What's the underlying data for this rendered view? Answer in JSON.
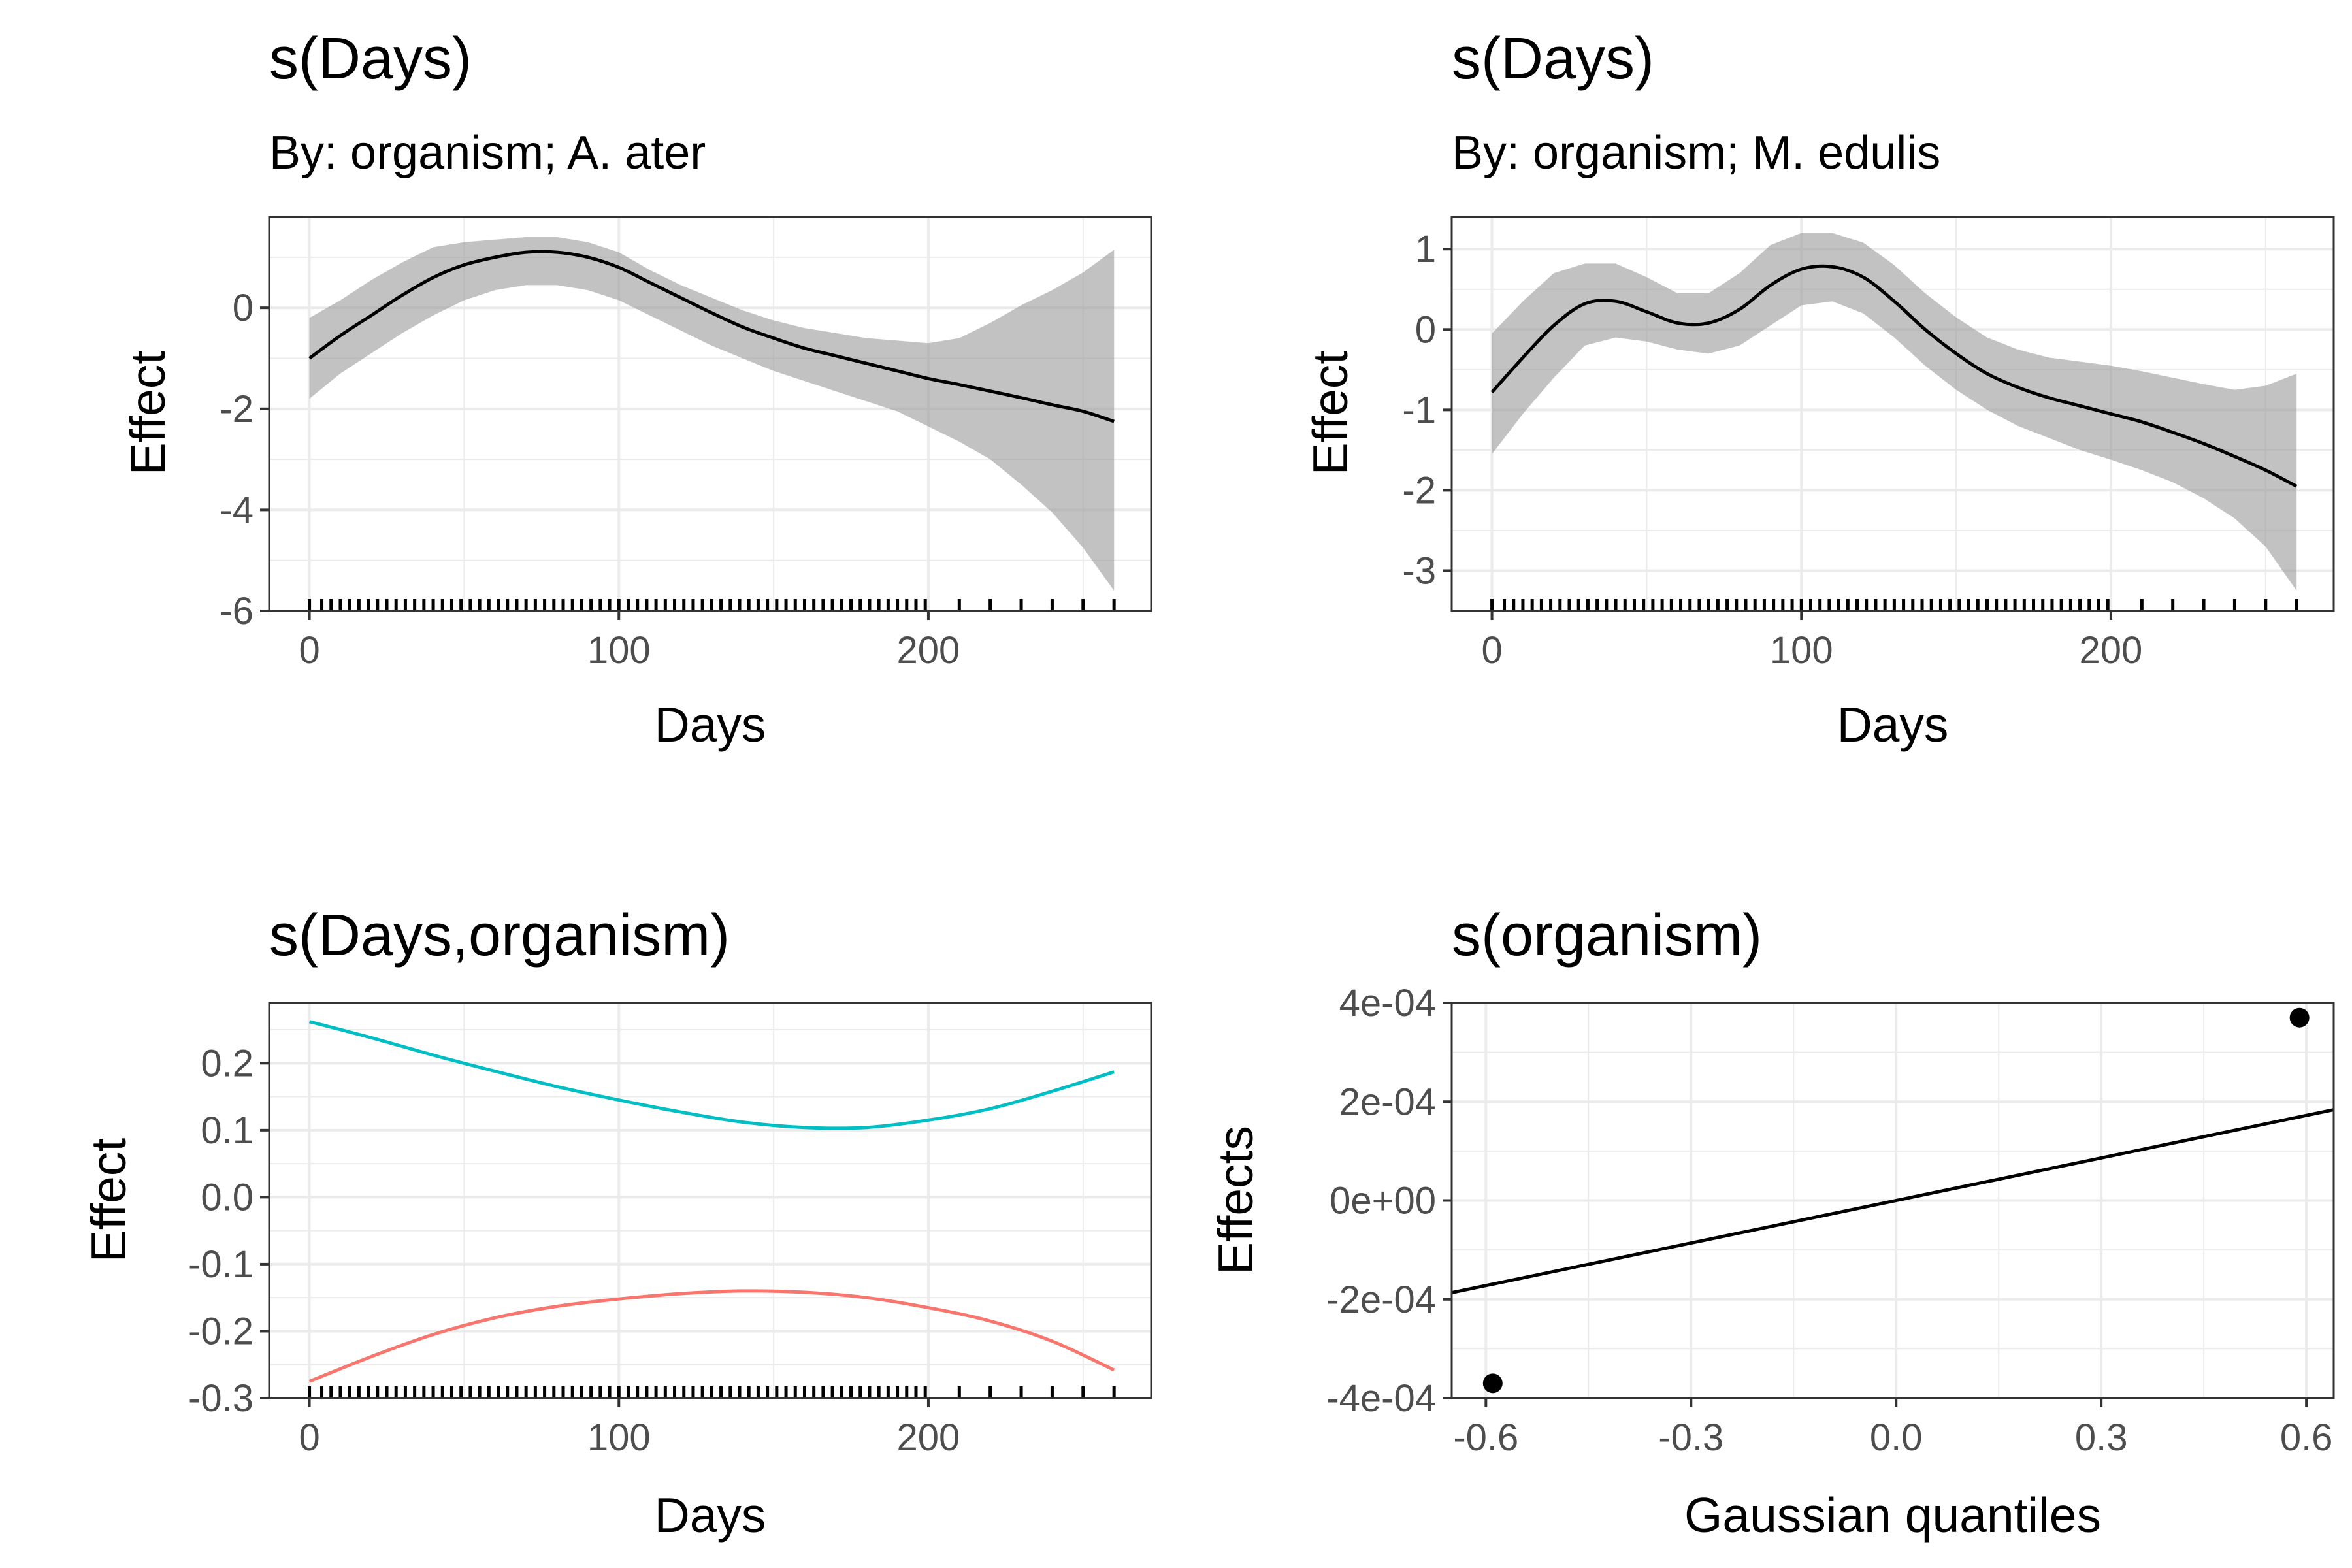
{
  "chart_data": [
    {
      "type": "line",
      "title": "s(Days)",
      "subtitle": "By: organism; A. ater",
      "xlabel": "Days",
      "ylabel": "Effect",
      "xlim": [
        -13,
        272
      ],
      "ylim": [
        -6,
        1.8
      ],
      "xticks": [
        0,
        100,
        200
      ],
      "yticks": [
        0,
        -2,
        -4,
        -6
      ],
      "grid": true,
      "series": [
        {
          "x": [
            0,
            10,
            20,
            30,
            40,
            50,
            60,
            70,
            80,
            90,
            100,
            110,
            120,
            130,
            140,
            150,
            160,
            170,
            180,
            190,
            200,
            210,
            220,
            230,
            240,
            250,
            260
          ],
          "y": [
            -1.0,
            -0.55,
            -0.15,
            0.25,
            0.6,
            0.85,
            1.0,
            1.1,
            1.1,
            1.0,
            0.8,
            0.5,
            0.2,
            -0.1,
            -0.38,
            -0.6,
            -0.8,
            -0.95,
            -1.1,
            -1.25,
            -1.4,
            -1.52,
            -1.65,
            -1.78,
            -1.92,
            -2.05,
            -2.25
          ],
          "lower": [
            -1.8,
            -1.3,
            -0.9,
            -0.5,
            -0.15,
            0.15,
            0.35,
            0.45,
            0.45,
            0.35,
            0.15,
            -0.15,
            -0.45,
            -0.75,
            -1.0,
            -1.25,
            -1.45,
            -1.65,
            -1.85,
            -2.05,
            -2.35,
            -2.65,
            -3.0,
            -3.5,
            -4.05,
            -4.75,
            -5.6
          ],
          "upper": [
            -0.2,
            0.15,
            0.55,
            0.9,
            1.2,
            1.3,
            1.35,
            1.4,
            1.4,
            1.3,
            1.1,
            0.75,
            0.45,
            0.2,
            -0.05,
            -0.25,
            -0.4,
            -0.5,
            -0.6,
            -0.65,
            -0.7,
            -0.6,
            -0.3,
            0.05,
            0.35,
            0.7,
            1.15
          ]
        }
      ],
      "rug": [
        0,
        4,
        7,
        10,
        13,
        16,
        19,
        22,
        25,
        28,
        31,
        34,
        37,
        40,
        43,
        46,
        49,
        52,
        55,
        58,
        61,
        64,
        67,
        70,
        73,
        76,
        79,
        82,
        85,
        88,
        91,
        94,
        97,
        100,
        103,
        106,
        109,
        112,
        115,
        118,
        121,
        124,
        127,
        130,
        133,
        136,
        139,
        142,
        145,
        148,
        151,
        154,
        157,
        160,
        163,
        166,
        169,
        172,
        175,
        178,
        181,
        184,
        187,
        190,
        193,
        196,
        199,
        210,
        220,
        230,
        240,
        250,
        260
      ]
    },
    {
      "type": "line",
      "title": "s(Days)",
      "subtitle": "By: organism; M. edulis",
      "xlabel": "Days",
      "ylabel": "Effect",
      "xlim": [
        -13,
        272
      ],
      "ylim": [
        -3.5,
        1.4
      ],
      "xticks": [
        0,
        100,
        200
      ],
      "yticks": [
        1,
        0,
        -1,
        -2,
        -3
      ],
      "grid": true,
      "series": [
        {
          "x": [
            0,
            10,
            20,
            30,
            40,
            50,
            60,
            70,
            80,
            90,
            100,
            110,
            120,
            130,
            140,
            150,
            160,
            170,
            180,
            190,
            200,
            210,
            220,
            230,
            240,
            250,
            260
          ],
          "y": [
            -0.78,
            -0.35,
            0.05,
            0.32,
            0.35,
            0.22,
            0.08,
            0.08,
            0.25,
            0.55,
            0.75,
            0.78,
            0.65,
            0.35,
            0.0,
            -0.3,
            -0.55,
            -0.72,
            -0.85,
            -0.95,
            -1.05,
            -1.15,
            -1.28,
            -1.42,
            -1.58,
            -1.75,
            -1.95
          ],
          "lower": [
            -1.55,
            -1.05,
            -0.6,
            -0.2,
            -0.1,
            -0.15,
            -0.25,
            -0.3,
            -0.2,
            0.05,
            0.3,
            0.35,
            0.2,
            -0.1,
            -0.45,
            -0.75,
            -1.0,
            -1.2,
            -1.35,
            -1.5,
            -1.62,
            -1.75,
            -1.9,
            -2.1,
            -2.35,
            -2.7,
            -3.25
          ],
          "upper": [
            -0.05,
            0.35,
            0.7,
            0.82,
            0.82,
            0.65,
            0.45,
            0.45,
            0.7,
            1.05,
            1.2,
            1.2,
            1.08,
            0.8,
            0.45,
            0.15,
            -0.1,
            -0.25,
            -0.35,
            -0.4,
            -0.45,
            -0.52,
            -0.6,
            -0.68,
            -0.75,
            -0.7,
            -0.55
          ]
        }
      ],
      "rug": [
        0,
        4,
        7,
        10,
        13,
        16,
        19,
        22,
        25,
        28,
        31,
        34,
        37,
        40,
        43,
        46,
        49,
        52,
        55,
        58,
        61,
        64,
        67,
        70,
        73,
        76,
        79,
        82,
        85,
        88,
        91,
        94,
        97,
        100,
        103,
        106,
        109,
        112,
        115,
        118,
        121,
        124,
        127,
        130,
        133,
        136,
        139,
        142,
        145,
        148,
        151,
        154,
        157,
        160,
        163,
        166,
        169,
        172,
        175,
        178,
        181,
        184,
        187,
        190,
        193,
        196,
        199,
        210,
        220,
        230,
        240,
        250,
        260
      ]
    },
    {
      "type": "line",
      "title": "s(Days,organism)",
      "xlabel": "Days",
      "ylabel": "Effect",
      "xlim": [
        -13,
        272
      ],
      "ylim": [
        -0.3,
        0.29
      ],
      "xticks": [
        0,
        100,
        200
      ],
      "yticks": [
        0.2,
        0.1,
        0.0,
        -0.1,
        -0.2,
        -0.3
      ],
      "ytick_labels": [
        "0.2",
        "0.1",
        "0.0",
        "-0.1",
        "-0.2",
        "-0.3"
      ],
      "grid": true,
      "series": [
        {
          "color": "#00bfc4",
          "x": [
            0,
            20,
            40,
            60,
            80,
            100,
            120,
            140,
            160,
            180,
            200,
            220,
            240,
            260
          ],
          "y": [
            0.262,
            0.238,
            0.212,
            0.188,
            0.165,
            0.145,
            0.127,
            0.112,
            0.104,
            0.104,
            0.115,
            0.132,
            0.158,
            0.187
          ]
        },
        {
          "color": "#f8766d",
          "x": [
            0,
            20,
            40,
            60,
            80,
            100,
            120,
            140,
            160,
            180,
            200,
            220,
            240,
            260
          ],
          "y": [
            -0.275,
            -0.238,
            -0.205,
            -0.18,
            -0.163,
            -0.152,
            -0.144,
            -0.14,
            -0.142,
            -0.15,
            -0.165,
            -0.185,
            -0.215,
            -0.258
          ]
        }
      ],
      "rug": [
        0,
        4,
        7,
        10,
        13,
        16,
        19,
        22,
        25,
        28,
        31,
        34,
        37,
        40,
        43,
        46,
        49,
        52,
        55,
        58,
        61,
        64,
        67,
        70,
        73,
        76,
        79,
        82,
        85,
        88,
        91,
        94,
        97,
        100,
        103,
        106,
        109,
        112,
        115,
        118,
        121,
        124,
        127,
        130,
        133,
        136,
        139,
        142,
        145,
        148,
        151,
        154,
        157,
        160,
        163,
        166,
        169,
        172,
        175,
        178,
        181,
        184,
        187,
        190,
        193,
        196,
        199,
        210,
        220,
        230,
        240,
        250,
        260
      ]
    },
    {
      "type": "scatter",
      "title": "s(organism)",
      "xlabel": "Gaussian quantiles",
      "ylabel": "Effects",
      "xlim": [
        -0.65,
        0.64
      ],
      "ylim": [
        -0.0004,
        0.0004
      ],
      "xticks": [
        -0.6,
        -0.3,
        0.0,
        0.3,
        0.6
      ],
      "xtick_labels": [
        "-0.6",
        "-0.3",
        "0.0",
        "0.3",
        "0.6"
      ],
      "yticks": [
        0.0004,
        0.0002,
        0,
        -0.0002,
        -0.0004
      ],
      "ytick_labels": [
        "4e-04",
        "2e-04",
        "0e+00",
        "-2e-04",
        "-4e-04"
      ],
      "grid": true,
      "points": [
        {
          "x": -0.59,
          "y": -0.00037
        },
        {
          "x": 0.59,
          "y": 0.00037
        }
      ],
      "reference_line": {
        "slope": 0.000287,
        "intercept": 0
      }
    }
  ]
}
